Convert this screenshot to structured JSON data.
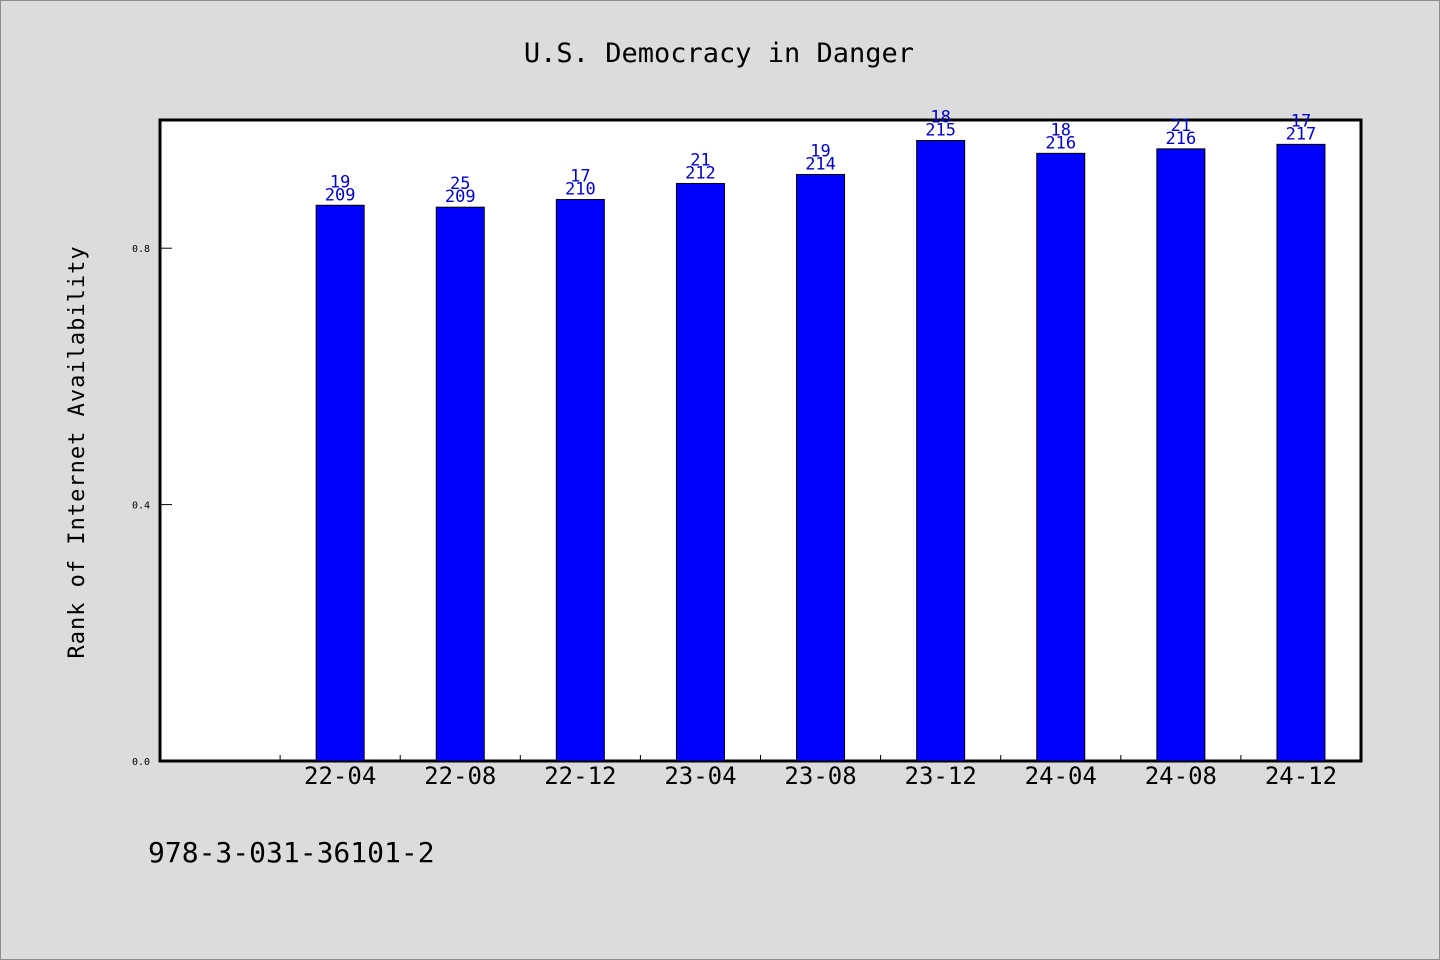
{
  "footer_text": "978-3-031-36101-2",
  "colors": {
    "background": "#dcdcdc",
    "plot_background": "#ffffff",
    "bar_fill": "#0000ff",
    "bar_stroke": "#000000",
    "data_label": "#0000cc"
  },
  "chart_data": {
    "type": "bar",
    "title": "U.S. Democracy in Danger",
    "xlabel": "",
    "ylabel": "Rank of Internet Availability",
    "ylim": [
      0,
      1.0
    ],
    "yticks": [
      "0.0",
      "0.4",
      "0.8"
    ],
    "ytick_values": [
      0.0,
      0.4,
      0.8
    ],
    "grid": false,
    "legend": "none",
    "categories": [
      "",
      "22-04",
      "22-08",
      "22-12",
      "23-04",
      "23-08",
      "23-12",
      "24-04",
      "24-08",
      "24-12"
    ],
    "values": [
      null,
      0.867,
      0.864,
      0.876,
      0.901,
      0.915,
      0.968,
      0.948,
      0.955,
      0.962
    ],
    "label_top": [
      "",
      "19",
      "25",
      "17",
      "21",
      "19",
      "18",
      "18",
      "21",
      "17"
    ],
    "label_bottom": [
      "",
      "209",
      "209",
      "210",
      "212",
      "214",
      "215",
      "216",
      "216",
      "217"
    ]
  }
}
